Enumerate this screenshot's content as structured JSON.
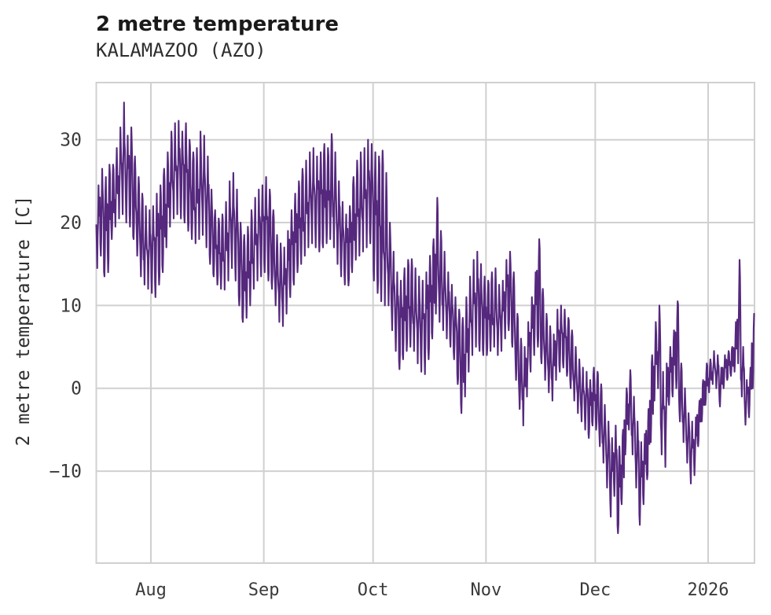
{
  "page": {
    "title": "2 metre temperature",
    "subtitle": "KALAMAZOO (AZO)"
  },
  "chart_data": {
    "type": "line",
    "title": "2 metre temperature",
    "subtitle": "KALAMAZOO (AZO)",
    "ylabel": "2 metre temperature [C]",
    "xlabel": "",
    "legend": "none",
    "grid": true,
    "grid_color": "#d0d0d0",
    "line_color": "#55287d",
    "ylim": [
      -21.1,
      36.9
    ],
    "y_ticks": [
      -10,
      0,
      10,
      20,
      30
    ],
    "x_ticks": [
      {
        "label": "Aug",
        "day": 15
      },
      {
        "label": "Sep",
        "day": 46
      },
      {
        "label": "Oct",
        "day": 76
      },
      {
        "label": "Nov",
        "day": 107
      },
      {
        "label": "Dec",
        "day": 137
      },
      {
        "label": "2026",
        "day": 168
      }
    ],
    "x_start": "Jul 17",
    "x_end": "Jan 13",
    "series_note": "hourly 2 m temperature in C, represented as estimated daily [date, min, max]",
    "days": [
      [
        "Jul 17",
        14.5,
        24.5
      ],
      [
        "Jul 18",
        16,
        26.5
      ],
      [
        "Jul 19",
        13.5,
        25.5
      ],
      [
        "Jul 20",
        14,
        27
      ],
      [
        "Jul 21",
        18,
        27
      ],
      [
        "Jul 22",
        19.5,
        29
      ],
      [
        "Jul 23",
        20.5,
        31.5
      ],
      [
        "Jul 24",
        21,
        34.5
      ],
      [
        "Jul 25",
        20,
        30.5
      ],
      [
        "Jul 26",
        19.5,
        31.5
      ],
      [
        "Jul 27",
        18,
        28
      ],
      [
        "Jul 28",
        16,
        25.5
      ],
      [
        "Jul 29",
        13.5,
        23.5
      ],
      [
        "Jul 30",
        12.5,
        22
      ],
      [
        "Jul 31",
        12,
        21.5
      ],
      [
        "Aug 1",
        11.5,
        22
      ],
      [
        "Aug 2",
        11,
        23.5
      ],
      [
        "Aug 3",
        12.5,
        24.5
      ],
      [
        "Aug 4",
        14,
        26.5
      ],
      [
        "Aug 5",
        17,
        28.5
      ],
      [
        "Aug 6",
        19.5,
        31
      ],
      [
        "Aug 7",
        20.5,
        32
      ],
      [
        "Aug 8",
        21,
        32.3
      ],
      [
        "Aug 9",
        20.5,
        31
      ],
      [
        "Aug 10",
        20,
        32
      ],
      [
        "Aug 11",
        19,
        30
      ],
      [
        "Aug 12",
        18,
        28.5
      ],
      [
        "Aug 13",
        17.5,
        29
      ],
      [
        "Aug 14",
        18,
        31
      ],
      [
        "Aug 15",
        18.5,
        30.5
      ],
      [
        "Aug 16",
        17,
        28
      ],
      [
        "Aug 17",
        15,
        24
      ],
      [
        "Aug 18",
        13.5,
        21.5
      ],
      [
        "Aug 19",
        12.5,
        20.5
      ],
      [
        "Aug 20",
        12,
        21
      ],
      [
        "Aug 21",
        11.9,
        22.5
      ],
      [
        "Aug 22",
        13,
        25
      ],
      [
        "Aug 23",
        14.5,
        26
      ],
      [
        "Aug 24",
        13,
        24
      ],
      [
        "Aug 25",
        10,
        20
      ],
      [
        "Aug 26",
        8,
        18.5
      ],
      [
        "Aug 27",
        8.5,
        19.5
      ],
      [
        "Aug 28",
        10,
        21.5
      ],
      [
        "Aug 29",
        12,
        23
      ],
      [
        "Aug 30",
        13,
        24
      ],
      [
        "Aug 31",
        13.5,
        24.5
      ],
      [
        "Sep 1",
        14,
        25.5
      ],
      [
        "Sep 2",
        13,
        24
      ],
      [
        "Sep 3",
        12,
        21.5
      ],
      [
        "Sep 4",
        10,
        18.5
      ],
      [
        "Sep 5",
        8,
        17.5
      ],
      [
        "Sep 6",
        7.5,
        17
      ],
      [
        "Sep 7",
        9,
        19
      ],
      [
        "Sep 8",
        11,
        21.5
      ],
      [
        "Sep 9",
        12.5,
        23.5
      ],
      [
        "Sep 10",
        14,
        25
      ],
      [
        "Sep 11",
        15,
        26.5
      ],
      [
        "Sep 12",
        16,
        27.5
      ],
      [
        "Sep 13",
        17,
        28.5
      ],
      [
        "Sep 14",
        17.5,
        29
      ],
      [
        "Sep 15",
        17,
        28
      ],
      [
        "Sep 16",
        16.5,
        28.5
      ],
      [
        "Sep 17",
        17,
        29.5
      ],
      [
        "Sep 18",
        17.5,
        29
      ],
      [
        "Sep 19",
        18,
        30.7
      ],
      [
        "Sep 20",
        17,
        28.5
      ],
      [
        "Sep 21",
        15,
        25
      ],
      [
        "Sep 22",
        13.5,
        22.5
      ],
      [
        "Sep 23",
        12.5,
        21
      ],
      [
        "Sep 24",
        12.4,
        22
      ],
      [
        "Sep 25",
        14,
        25.5
      ],
      [
        "Sep 26",
        15.5,
        27.5
      ],
      [
        "Sep 27",
        16,
        28.5
      ],
      [
        "Sep 28",
        16.5,
        29
      ],
      [
        "Sep 29",
        17,
        30
      ],
      [
        "Sep 30",
        17.5,
        29.5
      ],
      [
        "Oct 1",
        13,
        28.5
      ],
      [
        "Oct 2",
        11.5,
        28
      ],
      [
        "Oct 3",
        10.5,
        28.7
      ],
      [
        "Oct 4",
        10,
        26
      ],
      [
        "Oct 5",
        10,
        20
      ],
      [
        "Oct 6",
        7,
        16.5
      ],
      [
        "Oct 7",
        4.5,
        14
      ],
      [
        "Oct 8",
        2.3,
        13
      ],
      [
        "Oct 9",
        3.5,
        14.5
      ],
      [
        "Oct 10",
        4.5,
        15.5
      ],
      [
        "Oct 11",
        5,
        15.6
      ],
      [
        "Oct 12",
        4.5,
        14.5
      ],
      [
        "Oct 13",
        3,
        13.5
      ],
      [
        "Oct 14",
        2,
        13
      ],
      [
        "Oct 15",
        1.7,
        14
      ],
      [
        "Oct 16",
        3.5,
        16
      ],
      [
        "Oct 17",
        6,
        18
      ],
      [
        "Oct 18",
        9,
        23
      ],
      [
        "Oct 19",
        8,
        19
      ],
      [
        "Oct 20",
        7,
        16.5
      ],
      [
        "Oct 21",
        6,
        14
      ],
      [
        "Oct 22",
        5,
        12.5
      ],
      [
        "Oct 23",
        3.5,
        11
      ],
      [
        "Oct 24",
        0.5,
        9.5
      ],
      [
        "Oct 25",
        -3,
        8.5
      ],
      [
        "Oct 26",
        -1,
        11
      ],
      [
        "Oct 27",
        2,
        13.5
      ],
      [
        "Oct 28",
        4,
        15.5
      ],
      [
        "Oct 29",
        5,
        16.5
      ],
      [
        "Oct 30",
        4.5,
        15
      ],
      [
        "Oct 31",
        4,
        13.5
      ],
      [
        "Nov 1",
        4,
        13
      ],
      [
        "Nov 2",
        4.5,
        14
      ],
      [
        "Nov 3",
        5,
        14.5
      ],
      [
        "Nov 4",
        4,
        12.5
      ],
      [
        "Nov 5",
        4.5,
        13
      ],
      [
        "Nov 6",
        6,
        15.5
      ],
      [
        "Nov 7",
        7,
        16.5
      ],
      [
        "Nov 8",
        5,
        14
      ],
      [
        "Nov 9",
        1,
        9
      ],
      [
        "Nov 10",
        -2.5,
        6
      ],
      [
        "Nov 11",
        -4.5,
        5
      ],
      [
        "Nov 12",
        -1,
        8
      ],
      [
        "Nov 13",
        2,
        11
      ],
      [
        "Nov 14",
        4,
        14
      ],
      [
        "Nov 15",
        5,
        18
      ],
      [
        "Nov 16",
        3,
        12
      ],
      [
        "Nov 17",
        1,
        9
      ],
      [
        "Nov 18",
        -0.5,
        7.5
      ],
      [
        "Nov 19",
        -1.5,
        6.5
      ],
      [
        "Nov 20",
        1,
        9.5
      ],
      [
        "Nov 21",
        2,
        10
      ],
      [
        "Nov 22",
        2.5,
        9.5
      ],
      [
        "Nov 23",
        1.5,
        8.5
      ],
      [
        "Nov 24",
        0,
        7
      ],
      [
        "Nov 25",
        -1.5,
        5
      ],
      [
        "Nov 26",
        -3,
        3.5
      ],
      [
        "Nov 27",
        -4,
        2.5
      ],
      [
        "Nov 28",
        -5,
        2
      ],
      [
        "Nov 29",
        -6,
        1
      ],
      [
        "Nov 30",
        -4.5,
        2.5
      ],
      [
        "Dec 1",
        -5,
        2
      ],
      [
        "Dec 2",
        -7,
        0.5
      ],
      [
        "Dec 3",
        -9,
        -2
      ],
      [
        "Dec 4",
        -12,
        -4
      ],
      [
        "Dec 5",
        -15.5,
        -6
      ],
      [
        "Dec 6",
        -13,
        -4.5
      ],
      [
        "Dec 7",
        -17.5,
        -7
      ],
      [
        "Dec 8",
        -14,
        -5
      ],
      [
        "Dec 9",
        -8,
        0
      ],
      [
        "Dec 10",
        -5,
        2.2
      ],
      [
        "Dec 11",
        -8,
        -1
      ],
      [
        "Dec 12",
        -12,
        -4
      ],
      [
        "Dec 13",
        -16.5,
        -6.5
      ],
      [
        "Dec 14",
        -14,
        -5.5
      ],
      [
        "Dec 15",
        -11,
        -2.5
      ],
      [
        "Dec 16",
        -6.5,
        4
      ],
      [
        "Dec 17",
        -1.5,
        8
      ],
      [
        "Dec 18",
        0,
        10
      ],
      [
        "Dec 19",
        -8,
        2
      ],
      [
        "Dec 20",
        -9.5,
        3
      ],
      [
        "Dec 21",
        -2,
        5
      ],
      [
        "Dec 22",
        -1,
        7
      ],
      [
        "Dec 23",
        0,
        10.5
      ],
      [
        "Dec 24",
        -4,
        3
      ],
      [
        "Dec 25",
        -6.5,
        0
      ],
      [
        "Dec 26",
        -9,
        -3
      ],
      [
        "Dec 27",
        -11.5,
        -4
      ],
      [
        "Dec 28",
        -10.5,
        -3.5
      ],
      [
        "Dec 29",
        -7,
        -1.5
      ],
      [
        "Dec 30",
        -4,
        1
      ],
      [
        "Dec 31",
        -2,
        3
      ],
      [
        "Jan 1",
        -0.5,
        3.5
      ],
      [
        "Jan 2",
        0.5,
        4.5
      ],
      [
        "Jan 3",
        0,
        4
      ],
      [
        "Jan 4",
        -2.2,
        2.5
      ],
      [
        "Jan 5",
        0,
        4
      ],
      [
        "Jan 6",
        1,
        4.5
      ],
      [
        "Jan 7",
        1.5,
        5
      ],
      [
        "Jan 8",
        2,
        8
      ],
      [
        "Jan 9",
        3,
        15.5
      ],
      [
        "Jan 10",
        -1,
        5
      ],
      [
        "Jan 11",
        -4.4,
        1
      ],
      [
        "Jan 12",
        -3.5,
        2.5
      ],
      [
        "Jan 13",
        0,
        9
      ]
    ]
  }
}
